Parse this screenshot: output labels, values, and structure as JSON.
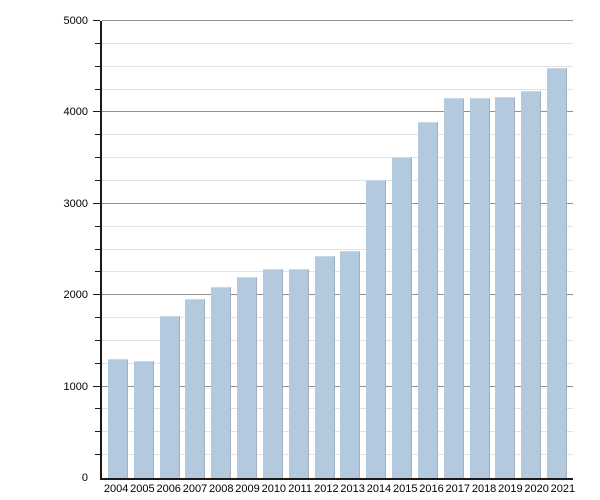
{
  "chart_data": {
    "type": "bar",
    "title": "",
    "xlabel": "",
    "ylabel": "",
    "categories": [
      "2004",
      "2005",
      "2006",
      "2007",
      "2008",
      "2009",
      "2010",
      "2011",
      "2012",
      "2013",
      "2014",
      "2015",
      "2016",
      "2017",
      "2018",
      "2019",
      "2020",
      "2021"
    ],
    "values": [
      1305,
      1285,
      1775,
      1955,
      2085,
      2200,
      2285,
      2290,
      2425,
      2485,
      3265,
      3510,
      3890,
      4155,
      4160,
      4170,
      4230,
      4490
    ],
    "ylim": [
      0,
      5000
    ],
    "y_major_step": 1000,
    "y_minor_step": 250,
    "y_tick_labels": [
      "0",
      "1000",
      "2000",
      "3000",
      "4000",
      "5000"
    ],
    "grid": true,
    "legend": null,
    "colors": {
      "bar_fill": "#b3cade",
      "bar_right_edge": "#a2aebc",
      "bar_top_edge": "#c9d7e6",
      "major_gridline": "#8f8f8f",
      "minor_gridline": "#e2e2e2",
      "axis": "#1a1a1a",
      "text": "#000000",
      "background": "#ffffff"
    }
  }
}
